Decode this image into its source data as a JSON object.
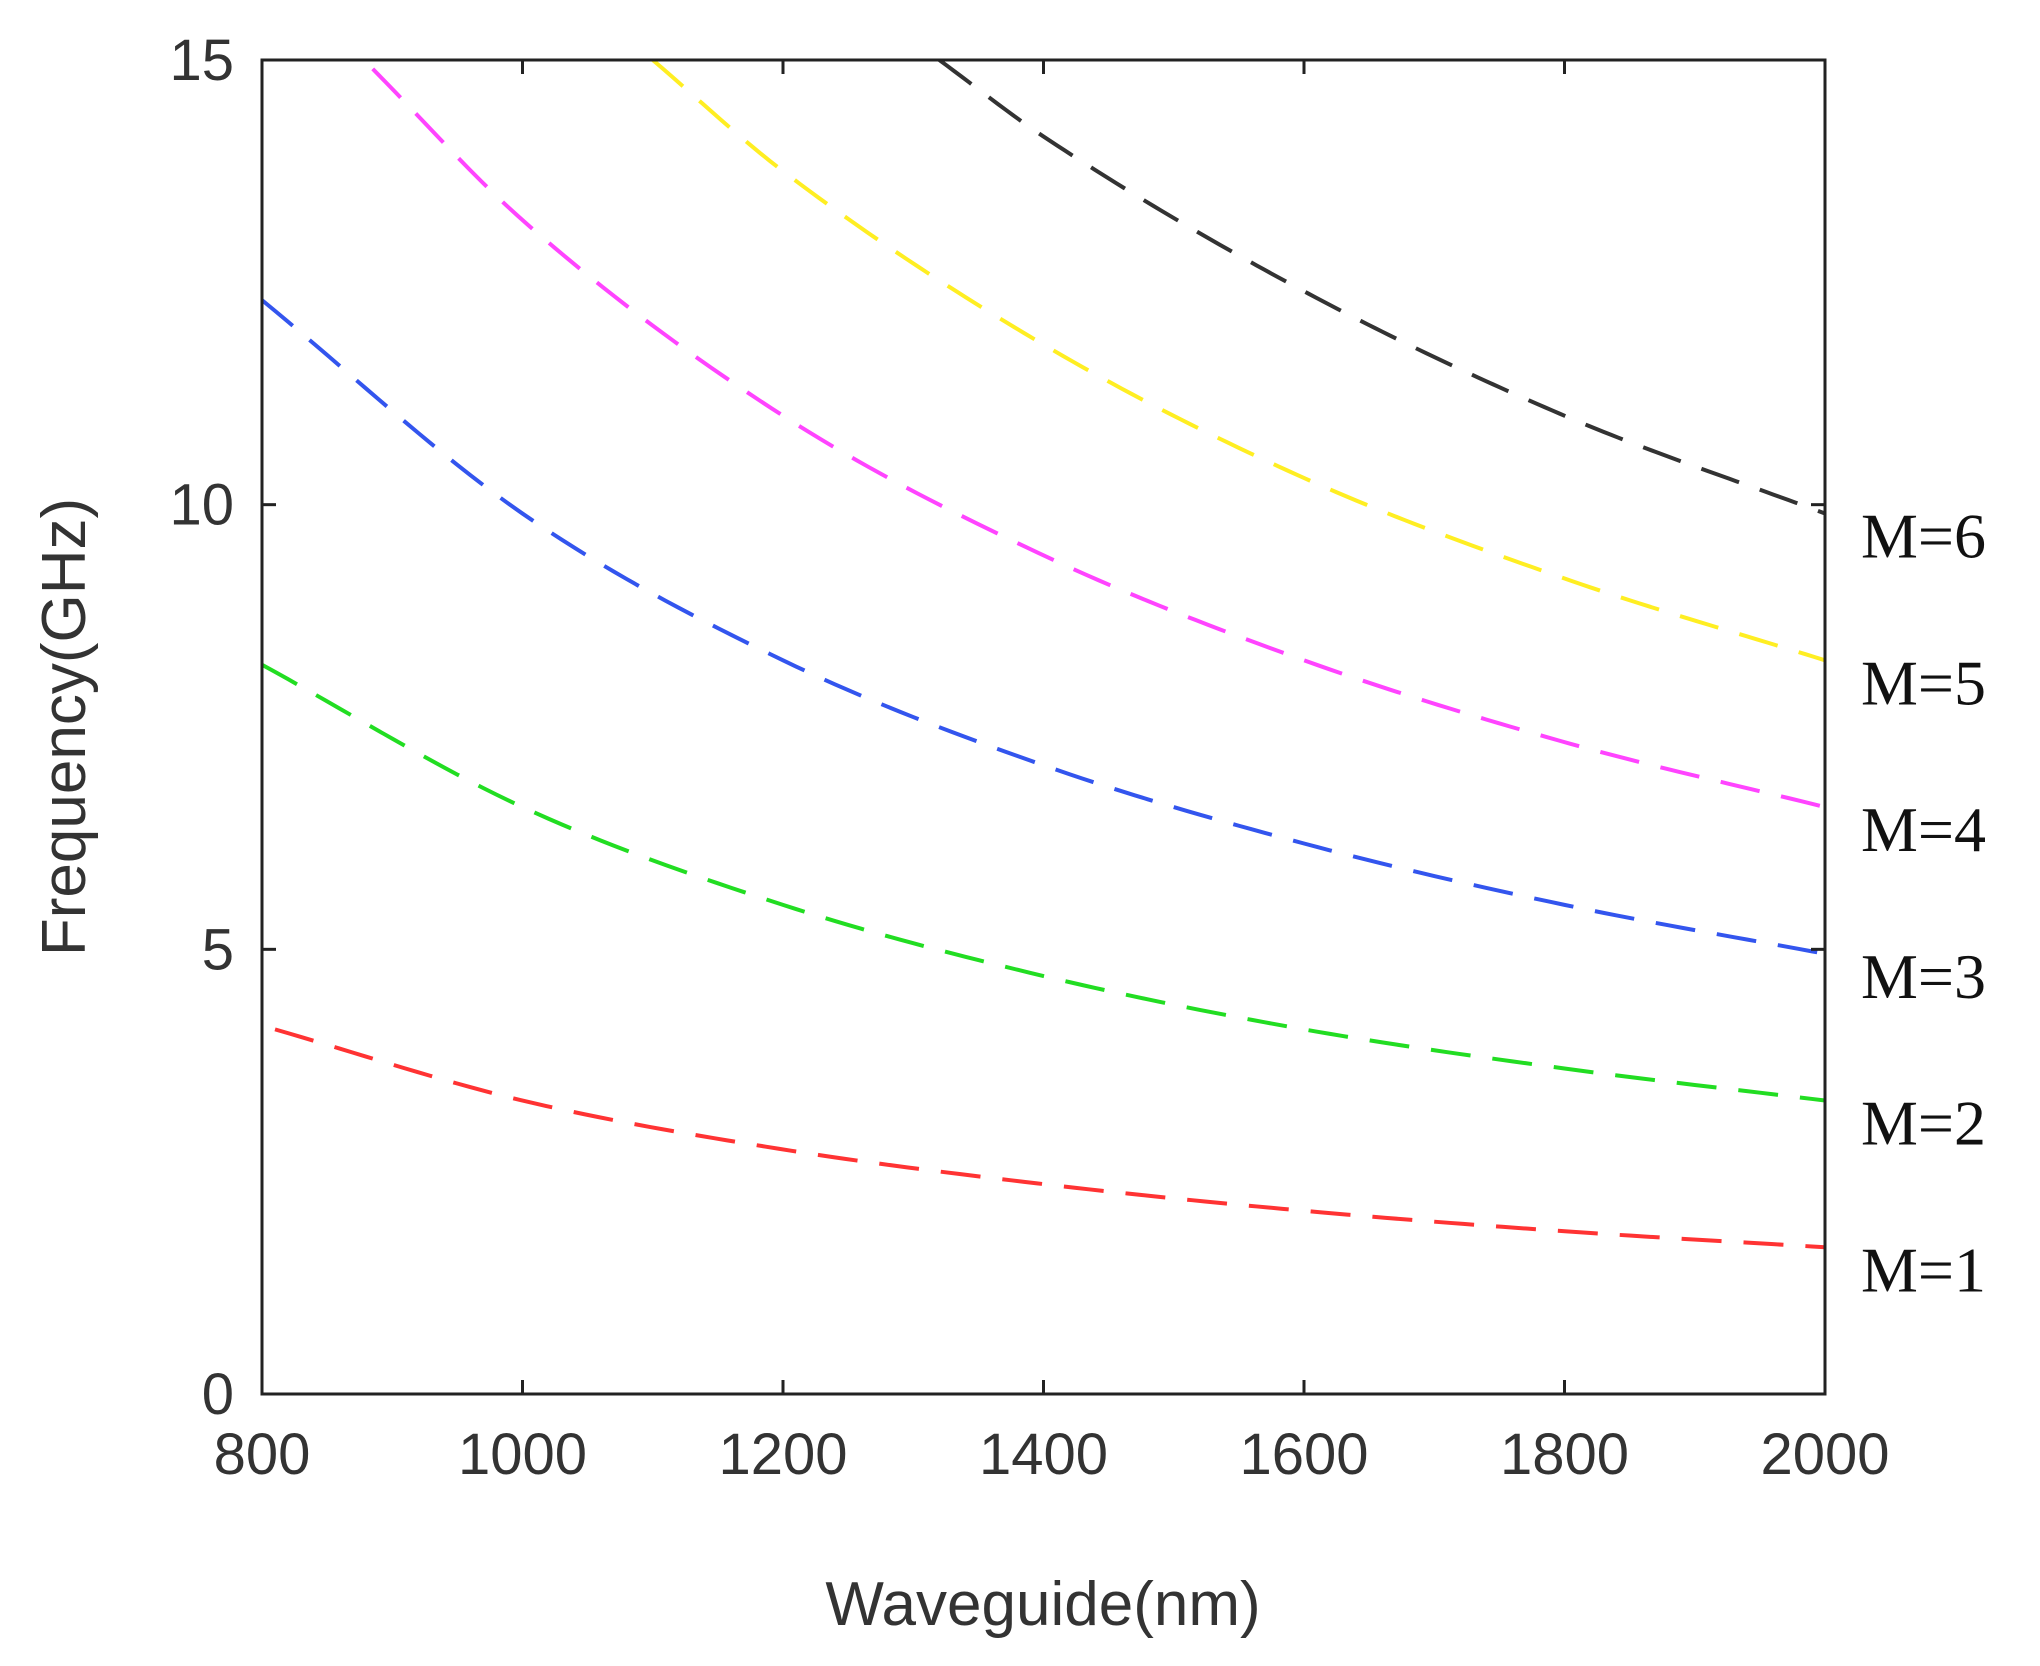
{
  "chart_data": {
    "type": "line",
    "xlabel": "Waveguide(nm)",
    "ylabel": "Frequency(GHz)",
    "xlim": [
      800,
      2000
    ],
    "ylim": [
      0,
      15
    ],
    "xticks": [
      "800",
      "1000",
      "1200",
      "1400",
      "1600",
      "1800",
      "2000"
    ],
    "yticks": [
      "0",
      "5",
      "10",
      "15"
    ],
    "grid": false,
    "line_style": "dashed",
    "series": [
      {
        "name": "M=1",
        "color": "#ff3333",
        "x": [
          810,
          1000,
          1200,
          1400,
          1600,
          1800,
          2000
        ],
        "y": [
          4.1,
          3.3,
          2.75,
          2.36,
          2.06,
          1.83,
          1.65
        ]
      },
      {
        "name": "M=2",
        "color": "#22dd22",
        "x": [
          800,
          1000,
          1200,
          1400,
          1600,
          1800,
          2000
        ],
        "y": [
          8.2,
          6.6,
          5.5,
          4.7,
          4.1,
          3.66,
          3.3
        ]
      },
      {
        "name": "M=3",
        "color": "#3355ee",
        "x": [
          800,
          1000,
          1200,
          1400,
          1600,
          1800,
          2000
        ],
        "y": [
          12.3,
          9.9,
          8.25,
          7.07,
          6.19,
          5.5,
          4.95
        ]
      },
      {
        "name": "M=4",
        "color": "#ff44ff",
        "x": [
          885,
          1000,
          1200,
          1400,
          1600,
          1800,
          2000
        ],
        "y": [
          14.9,
          13.2,
          11.0,
          9.43,
          8.25,
          7.33,
          6.6
        ]
      },
      {
        "name": "M=5",
        "color": "#ffee22",
        "x": [
          1100,
          1200,
          1400,
          1600,
          1800,
          2000
        ],
        "y": [
          15.0,
          13.75,
          11.8,
          10.3,
          9.17,
          8.25
        ]
      },
      {
        "name": "M=6",
        "color": "#333333",
        "x": [
          1320,
          1400,
          1600,
          1800,
          2000
        ],
        "y": [
          15.0,
          14.14,
          12.4,
          11.0,
          9.9
        ]
      }
    ]
  }
}
